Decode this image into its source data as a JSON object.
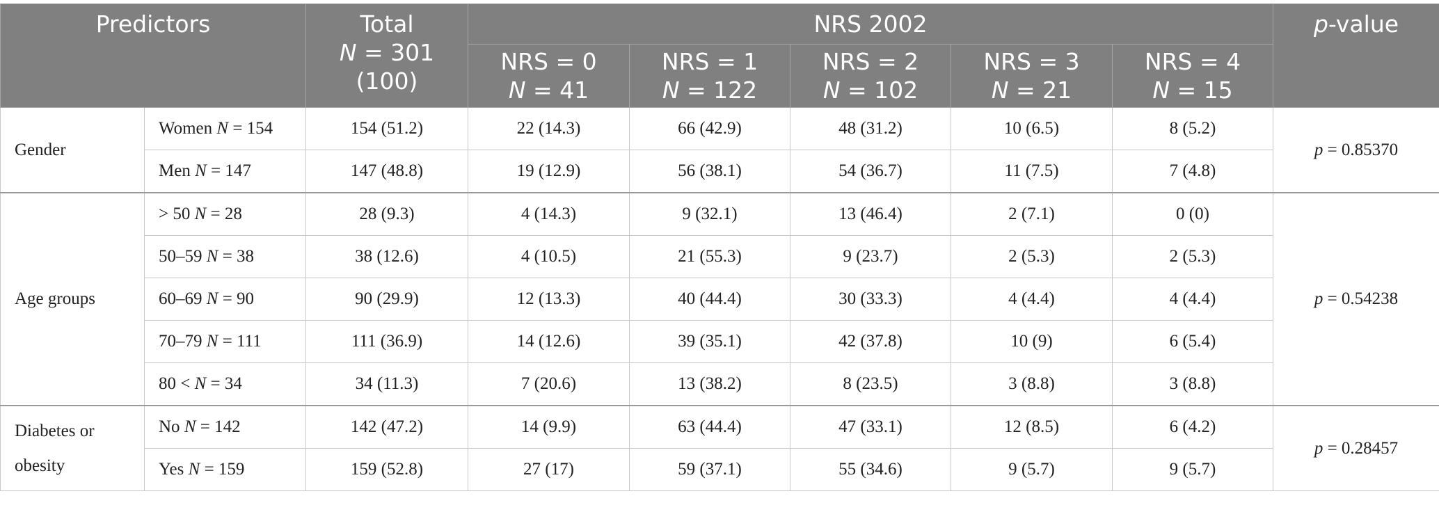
{
  "header": {
    "predictors": "Predictors",
    "total": {
      "title": "Total",
      "n": "N = 301",
      "pct": "(100)"
    },
    "group": "NRS 2002",
    "columns": [
      {
        "label": "NRS = 0",
        "n": "N = 41"
      },
      {
        "label": "NRS = 1",
        "n": "N = 122"
      },
      {
        "label": "NRS = 2",
        "n": "N = 102"
      },
      {
        "label": "NRS = 3",
        "n": "N = 21"
      },
      {
        "label": "NRS = 4",
        "n": "N = 15"
      }
    ],
    "p_value": "p-value"
  },
  "groups": [
    {
      "name": "Gender",
      "p": "p = 0.85370",
      "rows": [
        {
          "label": "Women",
          "n": "N = 154",
          "cells": [
            "154 (51.2)",
            "22 (14.3)",
            "66 (42.9)",
            "48 (31.2)",
            "10 (6.5)",
            "8 (5.2)"
          ]
        },
        {
          "label": "Men",
          "n": "N = 147",
          "cells": [
            "147 (48.8)",
            "19 (12.9)",
            "56 (38.1)",
            "54 (36.7)",
            "11 (7.5)",
            "7 (4.8)"
          ]
        }
      ]
    },
    {
      "name": "Age groups",
      "p": "p = 0.54238",
      "rows": [
        {
          "label": "> 50",
          "n": "N = 28",
          "cells": [
            "28 (9.3)",
            "4 (14.3)",
            "9 (32.1)",
            "13 (46.4)",
            "2 (7.1)",
            "0 (0)"
          ]
        },
        {
          "label": "50–59",
          "n": "N = 38",
          "cells": [
            "38 (12.6)",
            "4 (10.5)",
            "21 (55.3)",
            "9 (23.7)",
            "2 (5.3)",
            "2 (5.3)"
          ]
        },
        {
          "label": "60–69",
          "n": "N = 90",
          "cells": [
            "90 (29.9)",
            "12 (13.3)",
            "40 (44.4)",
            "30 (33.3)",
            "4 (4.4)",
            "4 (4.4)"
          ]
        },
        {
          "label": "70–79",
          "n": "N = 111",
          "cells": [
            "111 (36.9)",
            "14 (12.6)",
            "39 (35.1)",
            "42 (37.8)",
            "10 (9)",
            "6 (5.4)"
          ]
        },
        {
          "label": "80 <",
          "n": "N = 34",
          "cells": [
            "34 (11.3)",
            "7 (20.6)",
            "13 (38.2)",
            "8 (23.5)",
            "3 (8.8)",
            "3 (8.8)"
          ]
        }
      ]
    },
    {
      "name": "Diabetes or obesity",
      "p": "p = 0.28457",
      "rows": [
        {
          "label": "No",
          "n": "N = 142",
          "cells": [
            "142 (47.2)",
            "14 (9.9)",
            "63 (44.4)",
            "47 (33.1)",
            "12 (8.5)",
            "6 (4.2)"
          ]
        },
        {
          "label": "Yes",
          "n": "N = 159",
          "cells": [
            "159 (52.8)",
            "27 (17)",
            "59 (37.1)",
            "55 (34.6)",
            "9 (5.7)",
            "9 (5.7)"
          ]
        }
      ]
    }
  ]
}
